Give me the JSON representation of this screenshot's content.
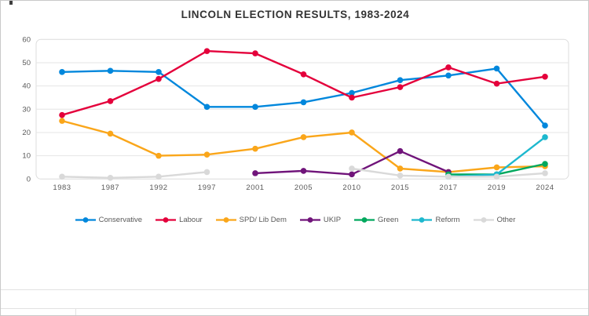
{
  "chart_data": {
    "type": "line",
    "title": "LINCOLN ELECTION RESULTS, 1983-2024",
    "categories": [
      "1983",
      "1987",
      "1992",
      "1997",
      "2001",
      "2005",
      "2010",
      "2015",
      "2017",
      "2019",
      "2024"
    ],
    "xlabel": "",
    "ylabel": "",
    "ylim": [
      0,
      60
    ],
    "yticks": [
      0,
      10,
      20,
      30,
      40,
      50,
      60
    ],
    "grid": true,
    "legend_position": "bottom",
    "series": [
      {
        "name": "Conservative",
        "color": "#0087DC",
        "values": [
          46,
          46.5,
          46,
          31,
          31,
          33,
          37,
          42.5,
          44.5,
          47.5,
          23
        ]
      },
      {
        "name": "Labour",
        "color": "#E4003B",
        "values": [
          27.5,
          33.5,
          43,
          55,
          54,
          45,
          35,
          39.5,
          48,
          41,
          44
        ]
      },
      {
        "name": "SPD/ Lib Dem",
        "color": "#FAA61A",
        "values": [
          25,
          19.5,
          10,
          10.5,
          13,
          18,
          20,
          4.5,
          3,
          5,
          5.5
        ]
      },
      {
        "name": "UKIP",
        "color": "#70147A",
        "values": [
          null,
          null,
          null,
          null,
          2.5,
          3.5,
          2,
          12,
          3,
          null,
          null
        ]
      },
      {
        "name": "Green",
        "color": "#00A85D",
        "values": [
          null,
          null,
          null,
          null,
          null,
          null,
          null,
          null,
          2,
          2,
          6.5
        ]
      },
      {
        "name": "Reform",
        "color": "#1DB8CE",
        "values": [
          null,
          null,
          null,
          null,
          null,
          null,
          null,
          null,
          1,
          2,
          18
        ]
      },
      {
        "name": "Other",
        "color": "#D9D9D9",
        "values": [
          1,
          0.5,
          1,
          3,
          null,
          null,
          4.5,
          1.5,
          1,
          1,
          2.5
        ]
      }
    ],
    "plot_border_color": "#dcdcdc",
    "gridline_color": "#e4e4e4",
    "axis_label_color": "#595959"
  }
}
